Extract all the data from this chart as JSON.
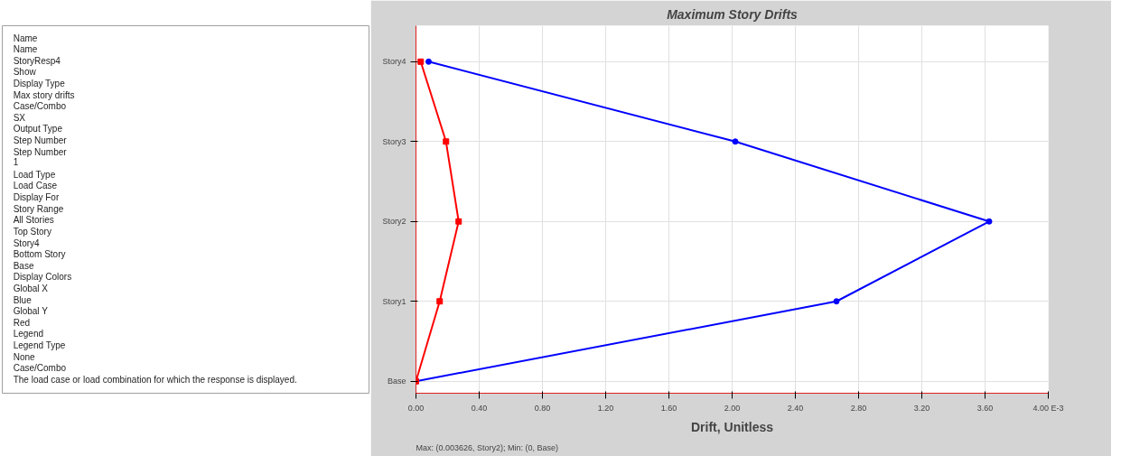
{
  "chart_data": [
    {
      "type": "other",
      "annotations": [
        "Name",
        "Name",
        "StoryResp4",
        "Show",
        "Display Type",
        "Max story drifts",
        "Case/Combo",
        "SX",
        "Output Type",
        "Step Number",
        "Step Number",
        "1",
        "Load Type",
        "Load Case",
        "Display For",
        "Story Range",
        "All Stories",
        "Top Story",
        "Story4",
        "Bottom Story",
        "Base",
        "Display Colors",
        "Global X",
        "Blue",
        "Global Y",
        "Red",
        "Legend",
        "Legend Type",
        "None",
        "Case/Combo",
        "The load case or load combination for which the response is displayed."
      ]
    },
    {
      "type": "line",
      "orientation": "horizontal",
      "title": "Maximum Story Drifts",
      "xlabel": "Drift, Unitless",
      "categories": [
        "Story4",
        "Story3",
        "Story2",
        "Story1",
        "Base"
      ],
      "series": [
        {
          "color": "#0000ff",
          "marker": "circle",
          "values": [
            0.08,
            2.02,
            3.626,
            2.66,
            0
          ]
        },
        {
          "color": "#ff0000",
          "marker": "square",
          "values": [
            0.03,
            0.19,
            0.27,
            0.15,
            0
          ]
        }
      ],
      "xlim": [
        0,
        4.0
      ],
      "xticks": [
        {
          "value": 0,
          "label": "0.00"
        },
        {
          "value": 0.4,
          "label": "0.40"
        },
        {
          "value": 0.8,
          "label": "0.80"
        },
        {
          "value": 1.2,
          "label": "1.20"
        },
        {
          "value": 1.6,
          "label": "1.60"
        },
        {
          "value": 2.0,
          "label": "2.00"
        },
        {
          "value": 2.4,
          "label": "2.40"
        },
        {
          "value": 2.8,
          "label": "2.80"
        },
        {
          "value": 3.2,
          "label": "3.20"
        },
        {
          "value": 3.6,
          "label": "3.60"
        },
        {
          "value": 4.0,
          "label": "4.00 E-3"
        }
      ],
      "grid": true,
      "annotations": [
        "Max: (0.003626, Story2);  Min: (0, Base)"
      ]
    }
  ]
}
